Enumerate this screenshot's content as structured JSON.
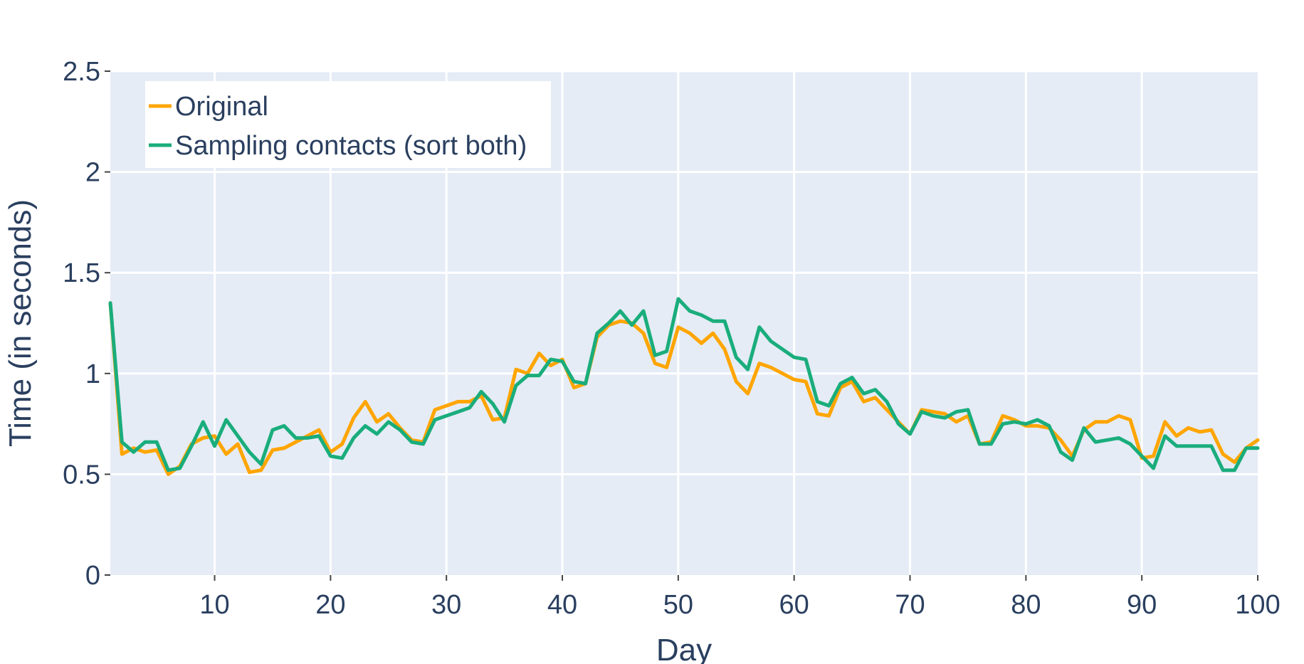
{
  "chart_data": {
    "type": "line",
    "title": "",
    "xlabel": "Day",
    "ylabel": "Time (in seconds)",
    "xlim": [
      1,
      100
    ],
    "ylim": [
      0,
      2.5
    ],
    "xticks": [
      10,
      20,
      30,
      40,
      50,
      60,
      70,
      80,
      90,
      100
    ],
    "yticks": [
      0,
      0.5,
      1,
      1.5,
      2,
      2.5
    ],
    "ytick_labels": [
      "0",
      "0.5",
      "1",
      "1.5",
      "2",
      "2.5"
    ],
    "grid": true,
    "legend_position": "top-left",
    "x": [
      1,
      2,
      3,
      4,
      5,
      6,
      7,
      8,
      9,
      10,
      11,
      12,
      13,
      14,
      15,
      16,
      17,
      18,
      19,
      20,
      21,
      22,
      23,
      24,
      25,
      26,
      27,
      28,
      29,
      30,
      31,
      32,
      33,
      34,
      35,
      36,
      37,
      38,
      39,
      40,
      41,
      42,
      43,
      44,
      45,
      46,
      47,
      48,
      49,
      50,
      51,
      52,
      53,
      54,
      55,
      56,
      57,
      58,
      59,
      60,
      61,
      62,
      63,
      64,
      65,
      66,
      67,
      68,
      69,
      70,
      71,
      72,
      73,
      74,
      75,
      76,
      77,
      78,
      79,
      80,
      81,
      82,
      83,
      84,
      85,
      86,
      87,
      88,
      89,
      90,
      91,
      92,
      93,
      94,
      95,
      96,
      97,
      98,
      99,
      100
    ],
    "series": [
      {
        "name": "Original",
        "color": "#ffa500",
        "values": [
          1.35,
          0.6,
          0.63,
          0.61,
          0.62,
          0.5,
          0.54,
          0.65,
          0.68,
          0.69,
          0.6,
          0.65,
          0.51,
          0.52,
          0.62,
          0.63,
          0.66,
          0.69,
          0.72,
          0.61,
          0.65,
          0.78,
          0.86,
          0.76,
          0.8,
          0.73,
          0.67,
          0.66,
          0.82,
          0.84,
          0.86,
          0.86,
          0.89,
          0.77,
          0.78,
          1.02,
          1.0,
          1.1,
          1.04,
          1.07,
          0.93,
          0.95,
          1.18,
          1.24,
          1.26,
          1.25,
          1.2,
          1.05,
          1.03,
          1.23,
          1.2,
          1.15,
          1.2,
          1.12,
          0.96,
          0.9,
          1.05,
          1.03,
          1.0,
          0.97,
          0.96,
          0.8,
          0.79,
          0.93,
          0.96,
          0.86,
          0.88,
          0.82,
          0.76,
          0.7,
          0.82,
          0.81,
          0.8,
          0.76,
          0.79,
          0.65,
          0.66,
          0.79,
          0.77,
          0.74,
          0.74,
          0.73,
          0.67,
          0.59,
          0.72,
          0.76,
          0.76,
          0.79,
          0.77,
          0.58,
          0.59,
          0.76,
          0.69,
          0.73,
          0.71,
          0.72,
          0.6,
          0.56,
          0.63,
          0.67
        ]
      },
      {
        "name": "Sampling contacts (sort both)",
        "color": "#1aad7c",
        "values": [
          1.35,
          0.66,
          0.61,
          0.66,
          0.66,
          0.52,
          0.53,
          0.64,
          0.76,
          0.64,
          0.77,
          0.69,
          0.61,
          0.55,
          0.72,
          0.74,
          0.68,
          0.68,
          0.69,
          0.59,
          0.58,
          0.68,
          0.74,
          0.7,
          0.76,
          0.72,
          0.66,
          0.65,
          0.77,
          0.79,
          0.81,
          0.83,
          0.91,
          0.85,
          0.76,
          0.94,
          0.99,
          0.99,
          1.07,
          1.06,
          0.96,
          0.95,
          1.2,
          1.25,
          1.31,
          1.24,
          1.31,
          1.09,
          1.11,
          1.37,
          1.31,
          1.29,
          1.26,
          1.26,
          1.08,
          1.02,
          1.23,
          1.16,
          1.12,
          1.08,
          1.07,
          0.86,
          0.84,
          0.95,
          0.98,
          0.9,
          0.92,
          0.86,
          0.75,
          0.7,
          0.81,
          0.79,
          0.78,
          0.81,
          0.82,
          0.65,
          0.65,
          0.75,
          0.76,
          0.75,
          0.77,
          0.74,
          0.61,
          0.57,
          0.73,
          0.66,
          0.67,
          0.68,
          0.65,
          0.59,
          0.53,
          0.69,
          0.64,
          0.64,
          0.64,
          0.64,
          0.52,
          0.52,
          0.63,
          0.63
        ]
      }
    ]
  }
}
